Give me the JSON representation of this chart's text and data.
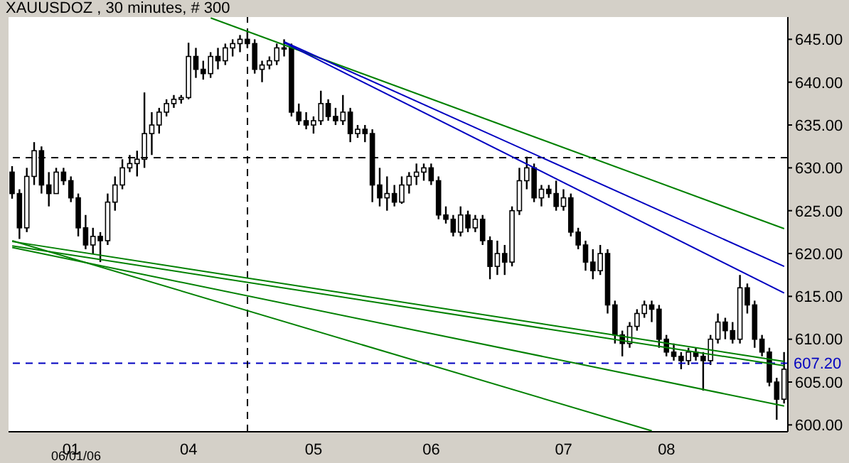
{
  "chart_data": {
    "type": "candlestick",
    "title": "XAUUSDOZ , 30 minutes, # 300",
    "annotations": [
      "06/01/06"
    ],
    "color": "#000000",
    "categories": [
      null,
      null,
      null,
      null,
      null,
      null,
      null,
      null,
      "01",
      null,
      null,
      null,
      null,
      null,
      null,
      null,
      null,
      null,
      null,
      null,
      null,
      null,
      null,
      null,
      "04",
      null,
      null,
      null,
      null,
      null,
      null,
      null,
      null,
      null,
      null,
      null,
      null,
      null,
      null,
      null,
      null,
      "05",
      null,
      null,
      null,
      null,
      null,
      null,
      null,
      null,
      null,
      null,
      null,
      null,
      null,
      null,
      null,
      "06",
      null,
      null,
      null,
      null,
      null,
      null,
      null,
      null,
      null,
      null,
      null,
      null,
      null,
      null,
      null,
      null,
      null,
      "07",
      null,
      null,
      null,
      null,
      null,
      null,
      null,
      null,
      null,
      null,
      null,
      null,
      null,
      "08",
      null,
      null,
      null,
      null,
      null,
      null,
      null,
      null,
      null,
      null,
      null,
      null,
      null,
      null,
      null,
      null
    ],
    "ohlc": [
      [
        629.5,
        630.2,
        626.4,
        627
      ],
      [
        627,
        627.5,
        621.7,
        623
      ],
      [
        623,
        630,
        622.5,
        629
      ],
      [
        629,
        633,
        628,
        632
      ],
      [
        632,
        632.5,
        627,
        628
      ],
      [
        628,
        629.5,
        625.5,
        627
      ],
      [
        627,
        630,
        627,
        629.5
      ],
      [
        629.5,
        630,
        628,
        628.5
      ],
      [
        628.5,
        629,
        626,
        626.5
      ],
      [
        626.5,
        627,
        622,
        623
      ],
      [
        623,
        624.5,
        620.5,
        621
      ],
      [
        621,
        623,
        620,
        622
      ],
      [
        622,
        622.5,
        619,
        621.5
      ],
      [
        621.5,
        627,
        621,
        626
      ],
      [
        626,
        629,
        625,
        628
      ],
      [
        628,
        631,
        627.5,
        630
      ],
      [
        630,
        631.5,
        629.5,
        630.5
      ],
      [
        630.5,
        632,
        629,
        631
      ],
      [
        631,
        638.8,
        630,
        634
      ],
      [
        634,
        636.5,
        631.5,
        635
      ],
      [
        635,
        637,
        634,
        636.5
      ],
      [
        636.5,
        638,
        636,
        637.5
      ],
      [
        637.5,
        638.5,
        637,
        638
      ],
      [
        638,
        638.5,
        637.5,
        638.2
      ],
      [
        638.2,
        644.6,
        638,
        643
      ],
      [
        643,
        644,
        640.5,
        641.5
      ],
      [
        641.5,
        642.5,
        640.3,
        641
      ],
      [
        641,
        643.5,
        640.5,
        643
      ],
      [
        643,
        644,
        641.5,
        642.5
      ],
      [
        642.5,
        644.5,
        642,
        644
      ],
      [
        644,
        645,
        643,
        644.5
      ],
      [
        644.5,
        645.5,
        643.5,
        645
      ],
      [
        645,
        646,
        644,
        644.5
      ],
      [
        644.5,
        645,
        641,
        641.5
      ],
      [
        641.5,
        642.5,
        640,
        642
      ],
      [
        642,
        643,
        641.5,
        642.5
      ],
      [
        642.5,
        644.5,
        642,
        644
      ],
      [
        644,
        645,
        643,
        644
      ],
      [
        644,
        644.5,
        636,
        636.5
      ],
      [
        636.5,
        637.5,
        635,
        635.5
      ],
      [
        635.5,
        636.5,
        634.5,
        635
      ],
      [
        635,
        636,
        634,
        635.5
      ],
      [
        635.5,
        639,
        635,
        637.5
      ],
      [
        637.5,
        638,
        635.5,
        636
      ],
      [
        636,
        637,
        635,
        635.5
      ],
      [
        635.5,
        638.5,
        635,
        636.5
      ],
      [
        636.5,
        637,
        633,
        634
      ],
      [
        634,
        635,
        633.5,
        634.5
      ],
      [
        634.5,
        635,
        633,
        634
      ],
      [
        634,
        634.5,
        626,
        628
      ],
      [
        628,
        630,
        625.5,
        626.5
      ],
      [
        626.5,
        629,
        625,
        627
      ],
      [
        627,
        628,
        625.5,
        626
      ],
      [
        626,
        629,
        625.8,
        628
      ],
      [
        628,
        629.5,
        627,
        629
      ],
      [
        629,
        630.5,
        628,
        629.5
      ],
      [
        629.5,
        630.5,
        628.5,
        630
      ],
      [
        630,
        630.5,
        628,
        628.5
      ],
      [
        628.5,
        629,
        624,
        624.5
      ],
      [
        624.5,
        625.5,
        623.5,
        624
      ],
      [
        624,
        624.5,
        622,
        622.5
      ],
      [
        622.5,
        625.5,
        622,
        624.5
      ],
      [
        624.5,
        625,
        622.5,
        623
      ],
      [
        623,
        624.5,
        622.5,
        624
      ],
      [
        624,
        624.5,
        621,
        621.5
      ],
      [
        621.5,
        622,
        617,
        618.5
      ],
      [
        618.5,
        621.5,
        617.5,
        620
      ],
      [
        620,
        621,
        617.5,
        619
      ],
      [
        619,
        625.5,
        618.5,
        625
      ],
      [
        625,
        630,
        624.5,
        628.5
      ],
      [
        628.5,
        631.3,
        627.5,
        630
      ],
      [
        630,
        630.5,
        626,
        626.5
      ],
      [
        626.5,
        628,
        625.5,
        627.5
      ],
      [
        627.5,
        628,
        626.5,
        627
      ],
      [
        627,
        628.5,
        625,
        625.5
      ],
      [
        625.5,
        627.5,
        625,
        626.5
      ],
      [
        626.5,
        627,
        622,
        622.5
      ],
      [
        622.5,
        623,
        620.5,
        621
      ],
      [
        621,
        621.5,
        618,
        619
      ],
      [
        619,
        620.5,
        617,
        618
      ],
      [
        618,
        621,
        617.5,
        620
      ],
      [
        620,
        620.5,
        613,
        614
      ],
      [
        614,
        614.5,
        609.5,
        610.5
      ],
      [
        610.5,
        611,
        608,
        609.5
      ],
      [
        609.5,
        612,
        609,
        611.5
      ],
      [
        611.5,
        613.5,
        611,
        613
      ],
      [
        613,
        614.5,
        612.5,
        614
      ],
      [
        614,
        614.5,
        612,
        613.5
      ],
      [
        613.5,
        614,
        609,
        610
      ],
      [
        610,
        610.5,
        608,
        608.5
      ],
      [
        608.5,
        609.5,
        607.5,
        608
      ],
      [
        608,
        608.5,
        606.5,
        607.5
      ],
      [
        607.5,
        609,
        607,
        608.5
      ],
      [
        608.5,
        609,
        607.5,
        608
      ],
      [
        608,
        608.5,
        604,
        607.5
      ],
      [
        607.5,
        610.5,
        607,
        610
      ],
      [
        610,
        613,
        609.5,
        612
      ],
      [
        612,
        612.5,
        610,
        611
      ],
      [
        611,
        612,
        609.5,
        610
      ],
      [
        610,
        617.5,
        609.5,
        616
      ],
      [
        616,
        616.5,
        613,
        614
      ],
      [
        614,
        614.5,
        609,
        610
      ],
      [
        610,
        610.5,
        608,
        608.5
      ],
      [
        608.5,
        609,
        604.5,
        605
      ],
      [
        605,
        605.5,
        600.6,
        603
      ],
      [
        603,
        608.5,
        602.5,
        606.5
      ]
    ],
    "series": [
      {
        "type": "line",
        "color": "#008000",
        "values": [
          null,
          null,
          null,
          null,
          null,
          null,
          null,
          null,
          null,
          null,
          null,
          null,
          null,
          null,
          null,
          null,
          null,
          null,
          null,
          null,
          null,
          null,
          null,
          null,
          null,
          null,
          null,
          647.5,
          null,
          null,
          null,
          null,
          null,
          null,
          null,
          null,
          null,
          null,
          null,
          null,
          null,
          null,
          null,
          null,
          null,
          null,
          null,
          null,
          null,
          null,
          null,
          null,
          null,
          null,
          null,
          null,
          null,
          null,
          null,
          null,
          null,
          null,
          null,
          null,
          null,
          null,
          null,
          null,
          null,
          null,
          null,
          null,
          null,
          null,
          null,
          null,
          null,
          null,
          null,
          null,
          null,
          null,
          null,
          null,
          null,
          null,
          null,
          null,
          null,
          null,
          null,
          null,
          null,
          null,
          null,
          null,
          null,
          null,
          null,
          null,
          null,
          null,
          null,
          null,
          null,
          622.9
        ]
      },
      {
        "type": "line",
        "color": "#0000c0",
        "values": [
          null,
          null,
          null,
          null,
          null,
          null,
          null,
          null,
          null,
          null,
          null,
          null,
          null,
          null,
          null,
          null,
          null,
          null,
          null,
          null,
          null,
          null,
          null,
          null,
          null,
          null,
          null,
          null,
          null,
          null,
          null,
          null,
          null,
          null,
          null,
          null,
          null,
          644.7,
          null,
          null,
          null,
          null,
          null,
          null,
          null,
          null,
          null,
          null,
          null,
          null,
          null,
          null,
          null,
          null,
          null,
          null,
          null,
          null,
          null,
          null,
          null,
          null,
          null,
          null,
          null,
          null,
          null,
          null,
          null,
          null,
          null,
          null,
          null,
          null,
          null,
          null,
          null,
          null,
          null,
          null,
          null,
          null,
          null,
          null,
          null,
          null,
          null,
          null,
          null,
          null,
          null,
          null,
          null,
          null,
          null,
          null,
          null,
          null,
          null,
          null,
          null,
          null,
          null,
          null,
          null,
          618.5
        ]
      },
      {
        "type": "line",
        "color": "#0000c0",
        "values": [
          null,
          null,
          null,
          null,
          null,
          null,
          null,
          null,
          null,
          null,
          null,
          null,
          null,
          null,
          null,
          null,
          null,
          null,
          null,
          null,
          null,
          null,
          null,
          null,
          null,
          null,
          null,
          null,
          null,
          null,
          null,
          null,
          null,
          null,
          null,
          null,
          null,
          644.6,
          null,
          null,
          null,
          null,
          null,
          null,
          null,
          null,
          null,
          null,
          null,
          null,
          null,
          null,
          null,
          null,
          null,
          null,
          null,
          null,
          null,
          null,
          null,
          null,
          null,
          null,
          null,
          null,
          null,
          null,
          null,
          null,
          null,
          null,
          null,
          null,
          null,
          null,
          null,
          null,
          null,
          null,
          null,
          null,
          null,
          null,
          null,
          null,
          null,
          null,
          null,
          null,
          null,
          null,
          null,
          null,
          null,
          null,
          null,
          null,
          null,
          null,
          null,
          null,
          null,
          null,
          null,
          615.4
        ]
      },
      {
        "type": "line",
        "color": "#008000",
        "values": [
          621.4,
          null,
          null,
          null,
          null,
          null,
          null,
          null,
          null,
          null,
          null,
          null,
          null,
          null,
          null,
          null,
          null,
          null,
          null,
          null,
          null,
          null,
          null,
          null,
          null,
          null,
          null,
          null,
          null,
          null,
          null,
          null,
          null,
          null,
          null,
          null,
          null,
          null,
          null,
          null,
          null,
          null,
          null,
          null,
          null,
          null,
          null,
          null,
          null,
          null,
          null,
          null,
          null,
          null,
          null,
          null,
          null,
          null,
          null,
          null,
          null,
          null,
          null,
          null,
          null,
          null,
          null,
          null,
          null,
          null,
          null,
          null,
          null,
          null,
          null,
          null,
          null,
          null,
          null,
          null,
          null,
          null,
          null,
          null,
          null,
          null,
          null,
          null,
          null,
          null,
          null,
          null,
          null,
          null,
          null,
          null,
          null,
          null,
          null,
          null,
          null,
          null,
          null,
          null,
          null,
          607.4
        ]
      },
      {
        "type": "line",
        "color": "#008000",
        "values": [
          620.9,
          null,
          null,
          null,
          null,
          null,
          null,
          null,
          null,
          null,
          null,
          null,
          null,
          null,
          null,
          null,
          null,
          null,
          null,
          null,
          null,
          null,
          null,
          null,
          null,
          null,
          null,
          null,
          null,
          null,
          null,
          null,
          null,
          null,
          null,
          null,
          null,
          null,
          null,
          null,
          null,
          null,
          null,
          null,
          null,
          null,
          null,
          null,
          null,
          null,
          null,
          null,
          null,
          null,
          null,
          null,
          null,
          null,
          null,
          null,
          null,
          null,
          null,
          null,
          null,
          null,
          null,
          null,
          null,
          null,
          null,
          null,
          null,
          null,
          null,
          null,
          null,
          null,
          null,
          null,
          null,
          null,
          null,
          null,
          null,
          null,
          null,
          null,
          null,
          null,
          null,
          null,
          null,
          null,
          null,
          null,
          null,
          null,
          null,
          null,
          null,
          null,
          null,
          null,
          null,
          606.9
        ]
      },
      {
        "type": "line",
        "color": "#008000",
        "values": [
          620.7,
          null,
          null,
          null,
          null,
          null,
          null,
          null,
          null,
          null,
          null,
          null,
          null,
          null,
          null,
          null,
          null,
          null,
          null,
          null,
          null,
          null,
          null,
          null,
          null,
          null,
          null,
          null,
          null,
          null,
          null,
          null,
          null,
          null,
          null,
          null,
          null,
          null,
          null,
          null,
          null,
          null,
          null,
          null,
          null,
          null,
          null,
          null,
          null,
          null,
          null,
          null,
          null,
          null,
          null,
          null,
          null,
          null,
          null,
          null,
          null,
          null,
          null,
          null,
          null,
          null,
          null,
          null,
          null,
          null,
          null,
          null,
          null,
          null,
          null,
          null,
          null,
          null,
          null,
          null,
          null,
          null,
          null,
          null,
          null,
          null,
          null,
          null,
          null,
          null,
          null,
          null,
          null,
          null,
          null,
          null,
          null,
          null,
          null,
          null,
          null,
          null,
          null,
          null,
          null,
          602.2
        ]
      },
      {
        "type": "line",
        "color": "#008000",
        "values": [
          621.5,
          null,
          null,
          null,
          null,
          null,
          null,
          null,
          null,
          null,
          null,
          null,
          null,
          null,
          null,
          null,
          null,
          null,
          null,
          null,
          null,
          null,
          null,
          null,
          null,
          null,
          null,
          null,
          null,
          null,
          null,
          null,
          null,
          null,
          null,
          null,
          null,
          null,
          null,
          null,
          null,
          null,
          null,
          null,
          null,
          null,
          null,
          null,
          null,
          null,
          null,
          null,
          null,
          null,
          null,
          null,
          null,
          null,
          null,
          null,
          null,
          null,
          null,
          null,
          null,
          null,
          null,
          null,
          null,
          null,
          null,
          null,
          null,
          null,
          null,
          null,
          null,
          null,
          null,
          null,
          null,
          null,
          null,
          null,
          null,
          null,
          null,
          599.3,
          null,
          null,
          null,
          null,
          null,
          null,
          null,
          null,
          null,
          null,
          null,
          null,
          null,
          null,
          null,
          null,
          null,
          null
        ]
      }
    ],
    "ylim": [
      599.2,
      647.6
    ],
    "yticks": [
      {
        "value": 600,
        "label": "600.00"
      },
      {
        "value": 605,
        "label": "605.00"
      },
      {
        "value": 610,
        "label": "610.00"
      },
      {
        "value": 615,
        "label": "615.00"
      },
      {
        "value": 620,
        "label": "620.00"
      },
      {
        "value": 625,
        "label": "625.00"
      },
      {
        "value": 630,
        "label": "630.00"
      },
      {
        "value": 635,
        "label": "635.00"
      },
      {
        "value": 640,
        "label": "640.00"
      },
      {
        "value": 645,
        "label": "645.00"
      }
    ],
    "ref_lines": [
      {
        "axis": "y",
        "value": 631.2,
        "color": "#000000",
        "line_style": "dashed"
      },
      {
        "axis": "y",
        "value": 607.2,
        "label": "607.20",
        "color": "#0000c0",
        "line_style": "dashed"
      }
    ],
    "grid": false,
    "legend": false
  }
}
